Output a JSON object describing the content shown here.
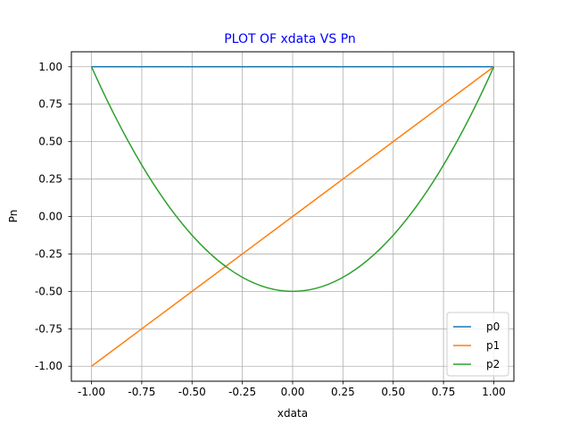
{
  "chart_data": {
    "type": "line",
    "title": "PLOT OF xdata VS Pn",
    "title_color": "#0000ff",
    "xlabel": "xdata",
    "ylabel": "Pn",
    "xlim": [
      -1.1,
      1.1
    ],
    "ylim": [
      -1.1,
      1.1
    ],
    "xticks": [
      "-1.00",
      "-0.75",
      "-0.50",
      "-0.25",
      "0.00",
      "0.25",
      "0.50",
      "0.75",
      "1.00"
    ],
    "yticks": [
      "-1.00",
      "-0.75",
      "-0.50",
      "-0.25",
      "0.00",
      "0.25",
      "0.50",
      "0.75",
      "1.00"
    ],
    "grid": true,
    "legend_location": "lower-right",
    "x": [
      -1.0,
      -0.75,
      -0.5,
      -0.25,
      0.0,
      0.25,
      0.5,
      0.75,
      1.0
    ],
    "series": [
      {
        "name": "p0",
        "color": "#1f77b4",
        "values": [
          1,
          1,
          1,
          1,
          1,
          1,
          1,
          1,
          1
        ]
      },
      {
        "name": "p1",
        "color": "#ff7f0e",
        "values": [
          -1.0,
          -0.75,
          -0.5,
          -0.25,
          0.0,
          0.25,
          0.5,
          0.75,
          1.0
        ]
      },
      {
        "name": "p2",
        "color": "#2ca02c",
        "values": [
          1.0,
          0.34375,
          -0.125,
          -0.40625,
          -0.5,
          -0.40625,
          -0.125,
          0.34375,
          1.0
        ]
      }
    ]
  }
}
